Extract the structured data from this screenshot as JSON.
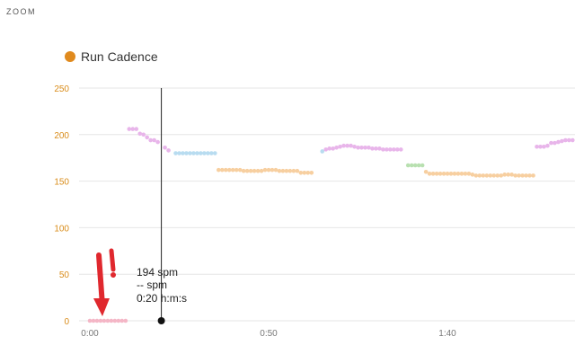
{
  "header": {
    "zoom_label": "ZOOM"
  },
  "legend": {
    "label": "Run Cadence",
    "dot_color": "#e08a1e"
  },
  "tooltip": {
    "line1": "194 spm",
    "line2": "-- spm",
    "line3": "0:20 h:m:s",
    "time_value": 20
  },
  "annotation": {
    "arrow-icon": "red-hand-drawn-arrow-and-exclamation",
    "color": "#e0282e"
  },
  "chart_data": {
    "type": "scatter",
    "title": "",
    "xlabel": "",
    "ylabel": "",
    "ylim": [
      0,
      250
    ],
    "xlim": [
      0,
      135
    ],
    "y_ticks": [
      "0",
      "50",
      "100",
      "150",
      "200",
      "250"
    ],
    "x_ticks": [
      {
        "label": "0:00",
        "value": 0
      },
      {
        "label": "0:50",
        "value": 50
      },
      {
        "label": "1:40",
        "value": 100
      }
    ],
    "cursor_x": 20,
    "grid": true,
    "series": [
      {
        "color": "#f4b6c6",
        "points": [
          [
            0,
            0
          ],
          [
            1,
            0
          ],
          [
            2,
            0
          ],
          [
            3,
            0
          ],
          [
            4,
            0
          ],
          [
            5,
            0
          ],
          [
            6,
            0
          ],
          [
            7,
            0
          ],
          [
            8,
            0
          ],
          [
            9,
            0
          ],
          [
            10,
            0
          ]
        ]
      },
      {
        "color": "#e8b5ea",
        "points": [
          [
            11,
            206
          ],
          [
            12,
            206
          ],
          [
            13,
            206
          ],
          [
            14,
            201
          ],
          [
            15,
            200
          ],
          [
            16,
            197
          ],
          [
            17,
            194
          ],
          [
            18,
            194
          ],
          [
            19,
            192
          ]
        ]
      },
      {
        "color": "#e8b5ea",
        "points": [
          [
            21,
            186
          ],
          [
            22,
            183
          ]
        ]
      },
      {
        "color": "#b8dcf0",
        "points": [
          [
            24,
            180
          ],
          [
            25,
            180
          ],
          [
            26,
            180
          ],
          [
            27,
            180
          ],
          [
            28,
            180
          ],
          [
            29,
            180
          ],
          [
            30,
            180
          ],
          [
            31,
            180
          ],
          [
            32,
            180
          ],
          [
            33,
            180
          ],
          [
            34,
            180
          ],
          [
            35,
            180
          ]
        ]
      },
      {
        "color": "#f7cfa0",
        "points": [
          [
            36,
            162
          ],
          [
            37,
            162
          ],
          [
            38,
            162
          ],
          [
            39,
            162
          ],
          [
            40,
            162
          ],
          [
            41,
            162
          ],
          [
            42,
            162
          ],
          [
            43,
            161
          ],
          [
            44,
            161
          ],
          [
            45,
            161
          ],
          [
            46,
            161
          ],
          [
            47,
            161
          ],
          [
            48,
            161
          ],
          [
            49,
            162
          ],
          [
            50,
            162
          ],
          [
            51,
            162
          ],
          [
            52,
            162
          ],
          [
            53,
            161
          ],
          [
            54,
            161
          ],
          [
            55,
            161
          ],
          [
            56,
            161
          ],
          [
            57,
            161
          ],
          [
            58,
            161
          ],
          [
            59,
            159
          ],
          [
            60,
            159
          ],
          [
            61,
            159
          ],
          [
            62,
            159
          ]
        ]
      },
      {
        "color": "#b8dcf0",
        "points": [
          [
            65,
            182
          ]
        ]
      },
      {
        "color": "#e8b5ea",
        "points": [
          [
            66,
            184
          ],
          [
            67,
            185
          ],
          [
            68,
            185
          ],
          [
            69,
            186
          ],
          [
            70,
            187
          ],
          [
            71,
            188
          ],
          [
            72,
            188
          ],
          [
            73,
            188
          ],
          [
            74,
            187
          ],
          [
            75,
            186
          ],
          [
            76,
            186
          ],
          [
            77,
            186
          ],
          [
            78,
            186
          ],
          [
            79,
            185
          ],
          [
            80,
            185
          ],
          [
            81,
            185
          ],
          [
            82,
            184
          ],
          [
            83,
            184
          ],
          [
            84,
            184
          ],
          [
            85,
            184
          ],
          [
            86,
            184
          ],
          [
            87,
            184
          ]
        ]
      },
      {
        "color": "#b8e0b0",
        "points": [
          [
            89,
            167
          ],
          [
            90,
            167
          ],
          [
            91,
            167
          ],
          [
            92,
            167
          ],
          [
            93,
            167
          ]
        ]
      },
      {
        "color": "#f7cfa0",
        "points": [
          [
            94,
            160
          ],
          [
            95,
            158
          ],
          [
            96,
            158
          ],
          [
            97,
            158
          ],
          [
            98,
            158
          ],
          [
            99,
            158
          ],
          [
            100,
            158
          ],
          [
            101,
            158
          ],
          [
            102,
            158
          ],
          [
            103,
            158
          ],
          [
            104,
            158
          ],
          [
            105,
            158
          ],
          [
            106,
            158
          ],
          [
            107,
            157
          ],
          [
            108,
            156
          ],
          [
            109,
            156
          ],
          [
            110,
            156
          ],
          [
            111,
            156
          ],
          [
            112,
            156
          ],
          [
            113,
            156
          ],
          [
            114,
            156
          ],
          [
            115,
            156
          ],
          [
            116,
            157
          ],
          [
            117,
            157
          ],
          [
            118,
            157
          ],
          [
            119,
            156
          ],
          [
            120,
            156
          ],
          [
            121,
            156
          ],
          [
            122,
            156
          ],
          [
            123,
            156
          ],
          [
            124,
            156
          ]
        ]
      },
      {
        "color": "#e8b5ea",
        "points": [
          [
            125,
            187
          ],
          [
            126,
            187
          ],
          [
            127,
            187
          ],
          [
            128,
            188
          ],
          [
            129,
            191
          ],
          [
            130,
            191
          ],
          [
            131,
            192
          ],
          [
            132,
            193
          ],
          [
            133,
            194
          ],
          [
            134,
            194
          ],
          [
            135,
            194
          ]
        ]
      }
    ]
  }
}
